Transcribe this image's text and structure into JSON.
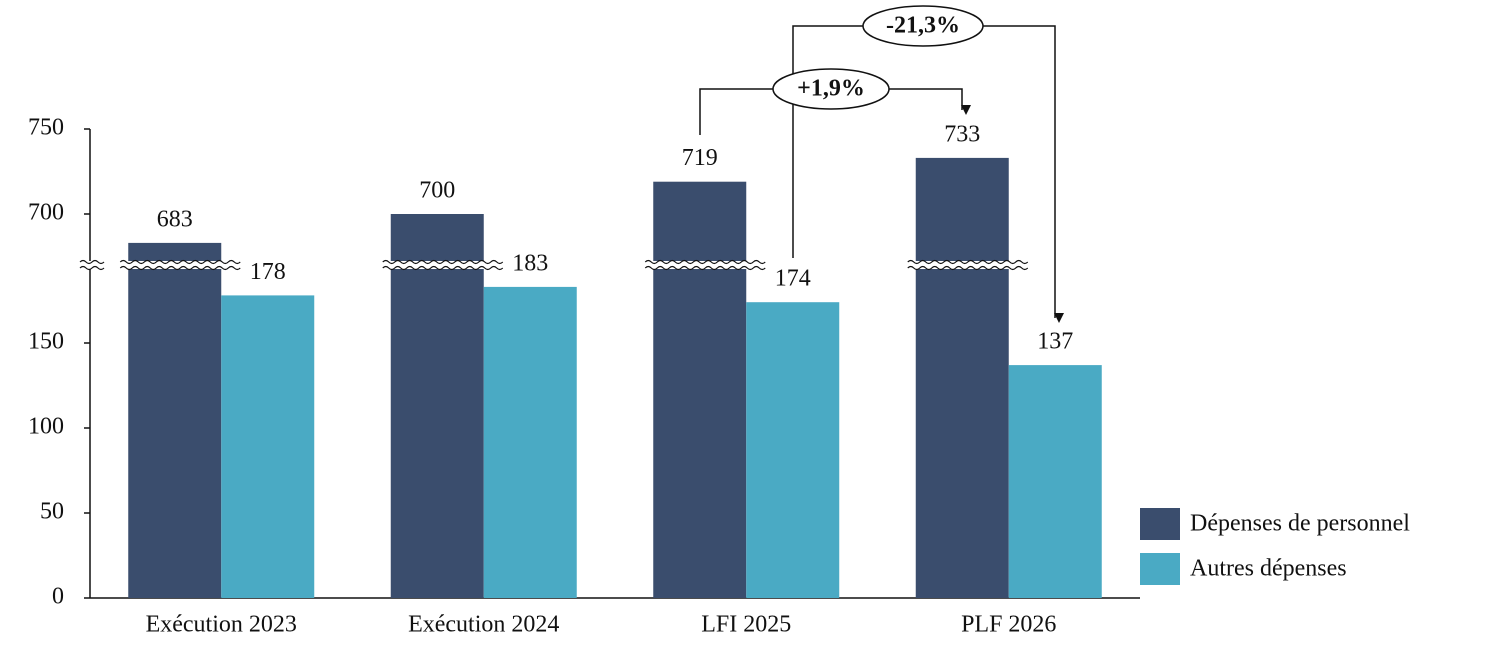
{
  "chart_data": {
    "type": "bar",
    "categories": [
      "Exécution 2023",
      "Exécution 2024",
      "LFI 2025",
      "PLF 2026"
    ],
    "series": [
      {
        "name": "Dépenses de personnel",
        "color": "#3a4d6d",
        "values": [
          683,
          700,
          719,
          733
        ]
      },
      {
        "name": "Autres dépenses",
        "color": "#4aaac4",
        "values": [
          178,
          183,
          174,
          137
        ]
      }
    ],
    "ylim": [
      0,
      750
    ],
    "ybreak": [
      196,
      670
    ],
    "yticks": [
      0,
      50,
      100,
      150,
      700,
      750
    ],
    "annotations": [
      "+1,9%",
      "-21,3%"
    ],
    "legend": "bottom-right"
  }
}
